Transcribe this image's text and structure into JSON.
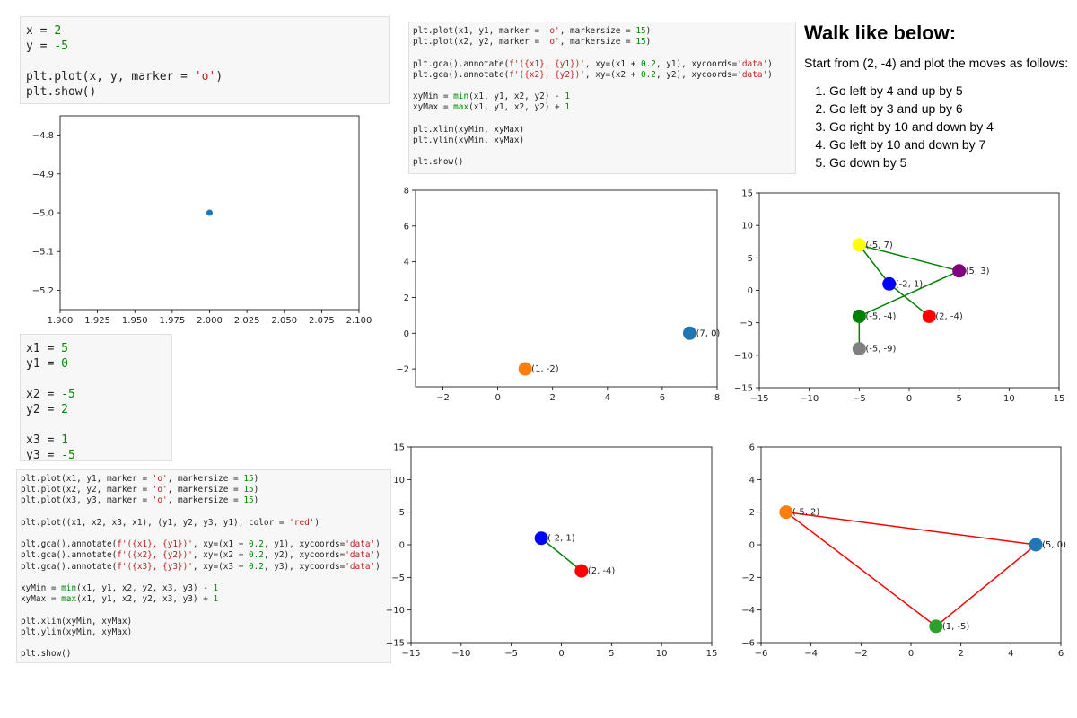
{
  "code_cells": {
    "cell_single_point": [
      [
        {
          "t": "x = "
        },
        {
          "t": "2",
          "c": "num"
        }
      ],
      [
        {
          "t": "y = "
        },
        {
          "t": "-5",
          "c": "num"
        }
      ],
      [
        {
          "t": ""
        }
      ],
      [
        {
          "t": "plt.plot(x, y, marker = "
        },
        {
          "t": "'o'",
          "c": "str"
        },
        {
          "t": ")"
        }
      ],
      [
        {
          "t": "plt.show()"
        }
      ]
    ],
    "cell_two_points": [
      [
        {
          "t": "plt.plot(x1, y1, marker = "
        },
        {
          "t": "'o'",
          "c": "str"
        },
        {
          "t": ", markersize = "
        },
        {
          "t": "15",
          "c": "num"
        },
        {
          "t": ")"
        }
      ],
      [
        {
          "t": "plt.plot(x2, y2, marker = "
        },
        {
          "t": "'o'",
          "c": "str"
        },
        {
          "t": ", markersize = "
        },
        {
          "t": "15",
          "c": "num"
        },
        {
          "t": ")"
        }
      ],
      [
        {
          "t": ""
        }
      ],
      [
        {
          "t": "plt.gca().annotate("
        },
        {
          "t": "f'({x1}, {y1})'",
          "c": "str"
        },
        {
          "t": ", xy=(x1 + "
        },
        {
          "t": "0.2",
          "c": "num"
        },
        {
          "t": ", y1), xycoords="
        },
        {
          "t": "'data'",
          "c": "str"
        },
        {
          "t": ")"
        }
      ],
      [
        {
          "t": "plt.gca().annotate("
        },
        {
          "t": "f'({x2}, {y2})'",
          "c": "str"
        },
        {
          "t": ", xy=(x2 + "
        },
        {
          "t": "0.2",
          "c": "num"
        },
        {
          "t": ", y2), xycoords="
        },
        {
          "t": "'data'",
          "c": "str"
        },
        {
          "t": ")"
        }
      ],
      [
        {
          "t": ""
        }
      ],
      [
        {
          "t": "xyMin = "
        },
        {
          "t": "min",
          "c": "fn"
        },
        {
          "t": "(x1, y1, x2, y2) - "
        },
        {
          "t": "1",
          "c": "num"
        }
      ],
      [
        {
          "t": "xyMax = "
        },
        {
          "t": "max",
          "c": "fn"
        },
        {
          "t": "(x1, y1, x2, y2) + "
        },
        {
          "t": "1",
          "c": "num"
        }
      ],
      [
        {
          "t": ""
        }
      ],
      [
        {
          "t": "plt.xlim(xyMin, xyMax)"
        }
      ],
      [
        {
          "t": "plt.ylim(xyMin, xyMax)"
        }
      ],
      [
        {
          "t": ""
        }
      ],
      [
        {
          "t": "plt.show()"
        }
      ]
    ],
    "cell_vars": [
      [
        {
          "t": "x1 = "
        },
        {
          "t": "5",
          "c": "num"
        }
      ],
      [
        {
          "t": "y1 = "
        },
        {
          "t": "0",
          "c": "num"
        }
      ],
      [
        {
          "t": ""
        }
      ],
      [
        {
          "t": "x2 = "
        },
        {
          "t": "-5",
          "c": "num"
        }
      ],
      [
        {
          "t": "y2 = "
        },
        {
          "t": "2",
          "c": "num"
        }
      ],
      [
        {
          "t": ""
        }
      ],
      [
        {
          "t": "x3 = "
        },
        {
          "t": "1",
          "c": "num"
        }
      ],
      [
        {
          "t": "y3 = "
        },
        {
          "t": "-5",
          "c": "num"
        }
      ]
    ],
    "cell_triangle": [
      [
        {
          "t": "plt.plot(x1, y1, marker = "
        },
        {
          "t": "'o'",
          "c": "str"
        },
        {
          "t": ", markersize = "
        },
        {
          "t": "15",
          "c": "num"
        },
        {
          "t": ")"
        }
      ],
      [
        {
          "t": "plt.plot(x2, y2, marker = "
        },
        {
          "t": "'o'",
          "c": "str"
        },
        {
          "t": ", markersize = "
        },
        {
          "t": "15",
          "c": "num"
        },
        {
          "t": ")"
        }
      ],
      [
        {
          "t": "plt.plot(x3, y3, marker = "
        },
        {
          "t": "'o'",
          "c": "str"
        },
        {
          "t": ", markersize = "
        },
        {
          "t": "15",
          "c": "num"
        },
        {
          "t": ")"
        }
      ],
      [
        {
          "t": ""
        }
      ],
      [
        {
          "t": "plt.plot((x1, x2, x3, x1), (y1, y2, y3, y1), color = "
        },
        {
          "t": "'red'",
          "c": "str"
        },
        {
          "t": ")"
        }
      ],
      [
        {
          "t": ""
        }
      ],
      [
        {
          "t": "plt.gca().annotate("
        },
        {
          "t": "f'({x1}, {y1})'",
          "c": "str"
        },
        {
          "t": ", xy=(x1 + "
        },
        {
          "t": "0.2",
          "c": "num"
        },
        {
          "t": ", y1), xycoords="
        },
        {
          "t": "'data'",
          "c": "str"
        },
        {
          "t": ")"
        }
      ],
      [
        {
          "t": "plt.gca().annotate("
        },
        {
          "t": "f'({x2}, {y2})'",
          "c": "str"
        },
        {
          "t": ", xy=(x2 + "
        },
        {
          "t": "0.2",
          "c": "num"
        },
        {
          "t": ", y2), xycoords="
        },
        {
          "t": "'data'",
          "c": "str"
        },
        {
          "t": ")"
        }
      ],
      [
        {
          "t": "plt.gca().annotate("
        },
        {
          "t": "f'({x3}, {y3})'",
          "c": "str"
        },
        {
          "t": ", xy=(x3 + "
        },
        {
          "t": "0.2",
          "c": "num"
        },
        {
          "t": ", y3), xycoords="
        },
        {
          "t": "'data'",
          "c": "str"
        },
        {
          "t": ")"
        }
      ],
      [
        {
          "t": ""
        }
      ],
      [
        {
          "t": "xyMin = "
        },
        {
          "t": "min",
          "c": "fn"
        },
        {
          "t": "(x1, y1, x2, y2, x3, y3) - "
        },
        {
          "t": "1",
          "c": "num"
        }
      ],
      [
        {
          "t": "xyMax = "
        },
        {
          "t": "max",
          "c": "fn"
        },
        {
          "t": "(x1, y1, x2, y2, x3, y3) + "
        },
        {
          "t": "1",
          "c": "num"
        }
      ],
      [
        {
          "t": ""
        }
      ],
      [
        {
          "t": "plt.xlim(xyMin, xyMax)"
        }
      ],
      [
        {
          "t": "plt.ylim(xyMin, xyMax)"
        }
      ],
      [
        {
          "t": ""
        }
      ],
      [
        {
          "t": "plt.show()"
        }
      ]
    ]
  },
  "instructions": {
    "title": "Walk like below:",
    "intro": "Start from (2, -4) and plot the moves as follows:",
    "steps": [
      "Go left by 4 and up by 5",
      "Go left by 3 and up by 6",
      "Go right by 10 and down by 4",
      "Go left by 10 and down by 7",
      "Go down by 5"
    ]
  },
  "chart_data": [
    {
      "id": "chart-single-point",
      "type": "scatter",
      "title": "",
      "xlabel": "",
      "ylabel": "",
      "xlim": [
        1.9,
        2.1
      ],
      "ylim": [
        -5.25,
        -4.75
      ],
      "xticks": [
        1.9,
        1.925,
        1.95,
        1.975,
        2.0,
        2.025,
        2.05,
        2.075,
        2.1
      ],
      "xtick_labels": [
        "1.900",
        "1.925",
        "1.950",
        "1.975",
        "2.000",
        "2.025",
        "2.050",
        "2.075",
        "2.100"
      ],
      "yticks": [
        -4.8,
        -4.9,
        -5.0,
        -5.1,
        -5.2
      ],
      "ytick_labels": [
        "−4.8",
        "−4.9",
        "−5.0",
        "−5.1",
        "−5.2"
      ],
      "points": [
        {
          "x": 2,
          "y": -5,
          "color": "#1f77b4",
          "r": 3.5
        }
      ],
      "lines": [],
      "grid": false
    },
    {
      "id": "chart-two-points",
      "type": "scatter",
      "title": "",
      "xlabel": "",
      "ylabel": "",
      "xlim": [
        -3,
        8
      ],
      "ylim": [
        -3,
        8
      ],
      "xticks": [
        -2,
        0,
        2,
        4,
        6,
        8
      ],
      "xtick_labels": [
        "−2",
        "0",
        "2",
        "4",
        "6",
        "8"
      ],
      "yticks": [
        -2,
        0,
        2,
        4,
        6,
        8
      ],
      "ytick_labels": [
        "−2",
        "0",
        "2",
        "4",
        "6",
        "8"
      ],
      "points": [
        {
          "x": 7,
          "y": 0,
          "color": "#1f77b4",
          "r": 7.5,
          "label": "(7, 0)"
        },
        {
          "x": 1,
          "y": -2,
          "color": "#ff7f0e",
          "r": 7.5,
          "label": "(1, -2)"
        }
      ],
      "lines": [],
      "grid": false
    },
    {
      "id": "chart-walk",
      "type": "line",
      "title": "",
      "xlabel": "",
      "ylabel": "",
      "xlim": [
        -15,
        15
      ],
      "ylim": [
        -15,
        15
      ],
      "xticks": [
        -15,
        -10,
        -5,
        0,
        5,
        10,
        15
      ],
      "xtick_labels": [
        "−15",
        "−10",
        "−5",
        "0",
        "5",
        "10",
        "15"
      ],
      "yticks": [
        -15,
        -10,
        -5,
        0,
        5,
        10,
        15
      ],
      "ytick_labels": [
        "−15",
        "−10",
        "−5",
        "0",
        "5",
        "10",
        "15"
      ],
      "lines": [
        {
          "x": [
            2,
            -2,
            -5,
            5,
            -5,
            -5
          ],
          "y": [
            -4,
            1,
            7,
            3,
            -4,
            -9
          ],
          "color": "#008000"
        }
      ],
      "points": [
        {
          "x": 2,
          "y": -4,
          "color": "#ff0000",
          "r": 7.5,
          "label": "(2, -4)"
        },
        {
          "x": -2,
          "y": 1,
          "color": "#0000ff",
          "r": 7.5,
          "label": "(-2, 1)"
        },
        {
          "x": -5,
          "y": 7,
          "color": "#ffff00",
          "r": 7.5,
          "label": "(-5, 7)"
        },
        {
          "x": 5,
          "y": 3,
          "color": "#800080",
          "r": 7.5,
          "label": "(5, 3)"
        },
        {
          "x": -5,
          "y": -4,
          "color": "#008000",
          "r": 7.5,
          "label": "(-5, -4)"
        },
        {
          "x": -5,
          "y": -9,
          "color": "#808080",
          "r": 7.5,
          "label": "(-5, -9)"
        }
      ],
      "grid": false
    },
    {
      "id": "chart-first-move",
      "type": "line",
      "title": "",
      "xlabel": "",
      "ylabel": "",
      "xlim": [
        -15,
        15
      ],
      "ylim": [
        -15,
        15
      ],
      "xticks": [
        -15,
        -10,
        -5,
        0,
        5,
        10,
        15
      ],
      "xtick_labels": [
        "−15",
        "−10",
        "−5",
        "0",
        "5",
        "10",
        "15"
      ],
      "yticks": [
        -15,
        -10,
        -5,
        0,
        5,
        10,
        15
      ],
      "ytick_labels": [
        "−15",
        "−10",
        "−5",
        "0",
        "5",
        "10",
        "15"
      ],
      "lines": [
        {
          "x": [
            2,
            -2
          ],
          "y": [
            -4,
            1
          ],
          "color": "#008000"
        }
      ],
      "points": [
        {
          "x": -2,
          "y": 1,
          "color": "#0000ff",
          "r": 7.5,
          "label": "(-2, 1)"
        },
        {
          "x": 2,
          "y": -4,
          "color": "#ff0000",
          "r": 7.5,
          "label": "(2, -4)"
        }
      ],
      "grid": false
    },
    {
      "id": "chart-triangle",
      "type": "line",
      "title": "",
      "xlabel": "",
      "ylabel": "",
      "xlim": [
        -6,
        6
      ],
      "ylim": [
        -6,
        6
      ],
      "xticks": [
        -6,
        -4,
        -2,
        0,
        2,
        4,
        6
      ],
      "xtick_labels": [
        "−6",
        "−4",
        "−2",
        "0",
        "2",
        "4",
        "6"
      ],
      "yticks": [
        -6,
        -4,
        -2,
        0,
        2,
        4,
        6
      ],
      "ytick_labels": [
        "−6",
        "−4",
        "−2",
        "0",
        "2",
        "4",
        "6"
      ],
      "lines": [
        {
          "x": [
            5,
            -5,
            1,
            5
          ],
          "y": [
            0,
            2,
            -5,
            0
          ],
          "color": "#ff0000"
        }
      ],
      "points": [
        {
          "x": 5,
          "y": 0,
          "color": "#1f77b4",
          "r": 7.5,
          "label": "(5, 0)"
        },
        {
          "x": -5,
          "y": 2,
          "color": "#ff7f0e",
          "r": 7.5,
          "label": "(-5, 2)"
        },
        {
          "x": 1,
          "y": -5,
          "color": "#2ca02c",
          "r": 7.5,
          "label": "(1, -5)"
        }
      ],
      "grid": false
    }
  ]
}
